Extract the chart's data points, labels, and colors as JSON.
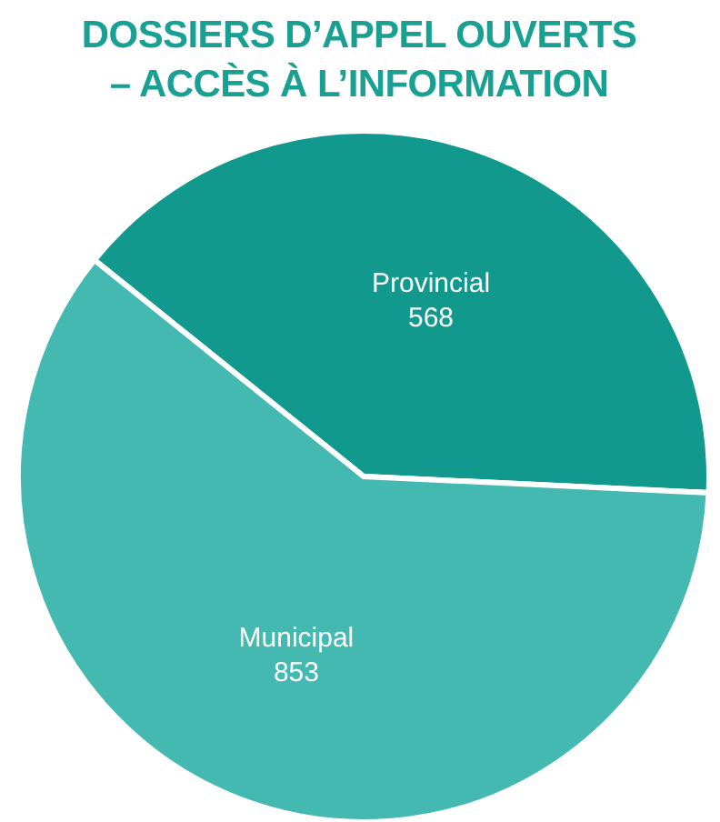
{
  "chart_data": {
    "type": "pie",
    "title": "DOSSIERS D’APPEL OUVERTS – ACCÈS À L’INFORMATION",
    "categories": [
      "Provincial",
      "Municipal"
    ],
    "values": [
      568,
      853
    ],
    "colors": [
      "#12998e",
      "#43b9b1"
    ],
    "data_labels": true
  }
}
